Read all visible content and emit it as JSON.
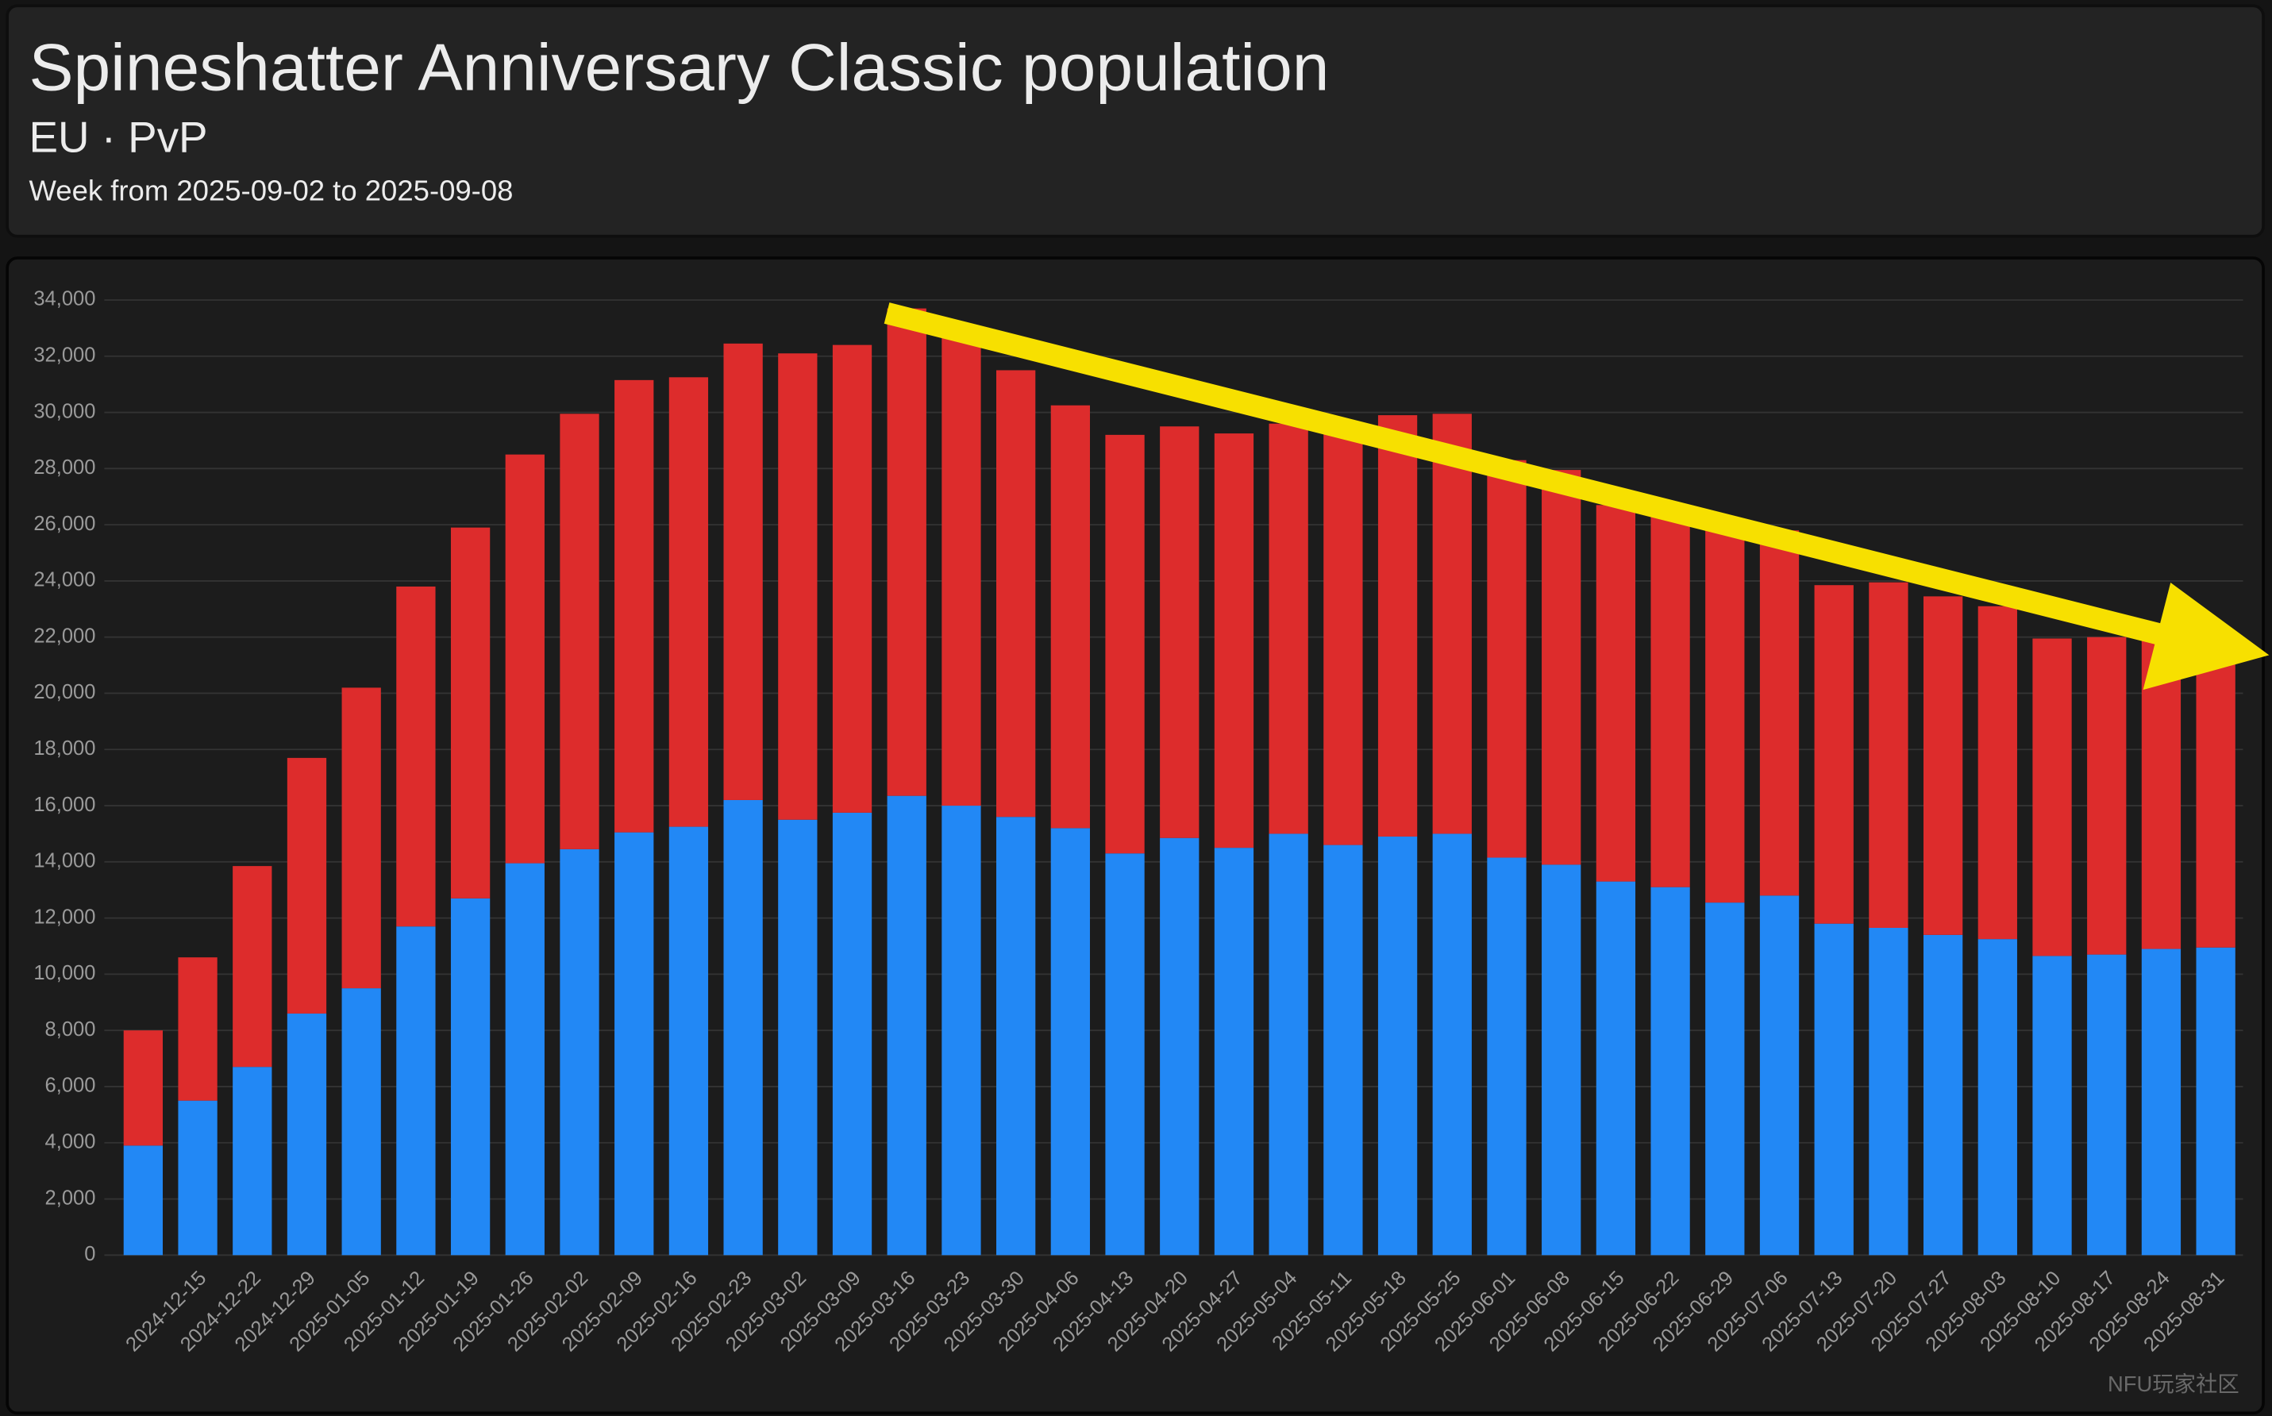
{
  "chart_data": {
    "type": "stacked_bar",
    "title": "Spineshatter Anniversary Classic population",
    "subtitle": "EU · PvP",
    "period": "Week from 2025-09-02 to 2025-09-08",
    "watermark": "NFU玩家社区",
    "categories": [
      null,
      "2024-12-15",
      "2024-12-22",
      "2024-12-29",
      "2025-01-05",
      "2025-01-12",
      "2025-01-19",
      "2025-01-26",
      "2025-02-02",
      "2025-02-09",
      "2025-02-16",
      "2025-02-23",
      "2025-03-02",
      "2025-03-09",
      "2025-03-16",
      "2025-03-23",
      "2025-03-30",
      "2025-04-06",
      "2025-04-13",
      "2025-04-20",
      "2025-04-27",
      "2025-05-04",
      "2025-05-11",
      "2025-05-18",
      "2025-05-25",
      "2025-06-01",
      "2025-06-08",
      "2025-06-15",
      "2025-06-22",
      "2025-06-29",
      "2025-07-06",
      "2025-07-13",
      "2025-07-20",
      "2025-07-27",
      "2025-08-03",
      "2025-08-10",
      "2025-08-17",
      "2025-08-24",
      "2025-08-31"
    ],
    "series": [
      {
        "color": "#2288f5",
        "values": [
          3900,
          5500,
          6700,
          8600,
          9500,
          11700,
          12700,
          13950,
          14450,
          15050,
          15250,
          16200,
          15500,
          15750,
          16350,
          16000,
          15600,
          15200,
          14300,
          14850,
          14500,
          15000,
          14600,
          14900,
          15000,
          14150,
          13900,
          13300,
          13100,
          12550,
          12800,
          11800,
          11650,
          11400,
          11250,
          10650,
          10700,
          10900,
          10950
        ]
      },
      {
        "color": "#dd2c2c",
        "values": [
          4100,
          5100,
          7150,
          9100,
          10700,
          12100,
          13200,
          14550,
          15500,
          16100,
          16000,
          16250,
          16600,
          16650,
          17350,
          17000,
          15900,
          15050,
          14900,
          14650,
          14750,
          14600,
          14800,
          15000,
          14950,
          14150,
          14050,
          13400,
          13200,
          13250,
          13000,
          12050,
          12300,
          12050,
          11850,
          11300,
          11300,
          11000,
          10750
        ]
      }
    ],
    "ylim": [
      0,
      34000
    ],
    "yticks": [
      0,
      {
        "value": 2000,
        "label": "2,000"
      },
      {
        "value": 4000,
        "label": "4,000"
      },
      {
        "value": 6000,
        "label": "6,000"
      },
      {
        "value": 8000,
        "label": "8,000"
      },
      {
        "value": 10000,
        "label": "10,000"
      },
      {
        "value": 12000,
        "label": "12,000"
      },
      {
        "value": 14000,
        "label": "14,000"
      },
      {
        "value": 16000,
        "label": "16,000"
      },
      {
        "value": 18000,
        "label": "18,000"
      },
      {
        "value": 20000,
        "label": "20,000"
      },
      {
        "value": 22000,
        "label": "22,000"
      },
      {
        "value": 24000,
        "label": "24,000"
      },
      {
        "value": 26000,
        "label": "26,000"
      },
      {
        "value": 28000,
        "label": "28,000"
      },
      {
        "value": 30000,
        "label": "30,000"
      },
      {
        "value": 32000,
        "label": "32,000"
      },
      {
        "value": 34000,
        "label": "34,000"
      }
    ],
    "grid": true
  }
}
